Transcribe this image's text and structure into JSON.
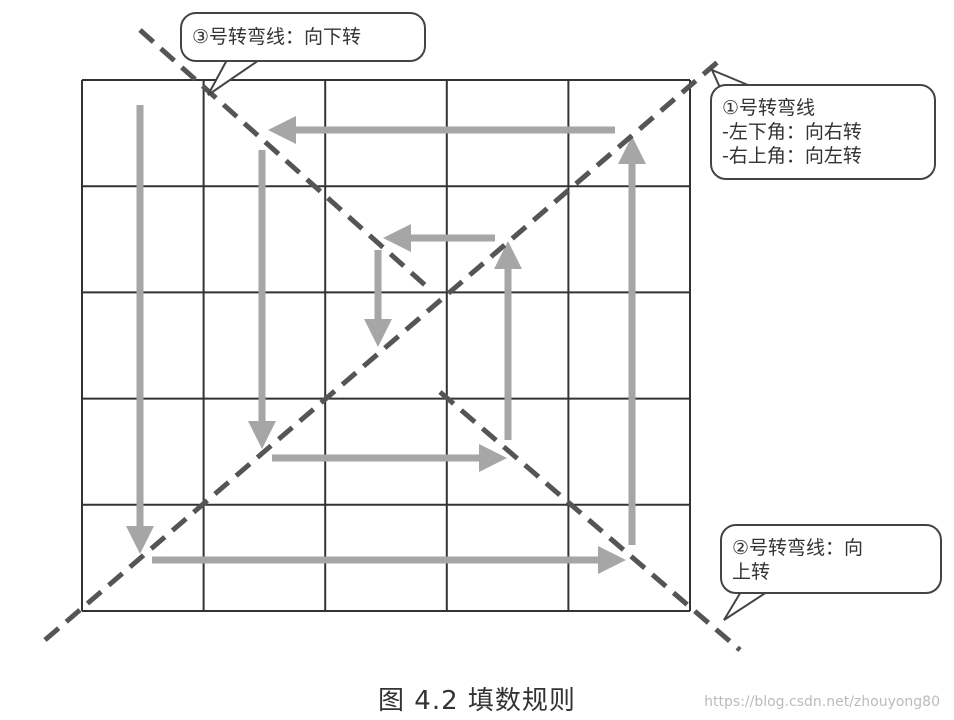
{
  "grid": {
    "rows": 5,
    "cols": 5
  },
  "colors": {
    "grid": "#333333",
    "arrow": "#a6a6a6",
    "dash": "#555555"
  },
  "callouts": {
    "turn3": {
      "lines": [
        "③号转弯线：向下转"
      ]
    },
    "turn1": {
      "lines": [
        "①号转弯线",
        "-左下角：向右转",
        "-右上角：向左转"
      ]
    },
    "turn2": {
      "lines": [
        "②号转弯线：向",
        "上转"
      ]
    }
  },
  "caption": "图 4.2    填数规则",
  "watermark": "https://blog.csdn.net/zhouyong80"
}
